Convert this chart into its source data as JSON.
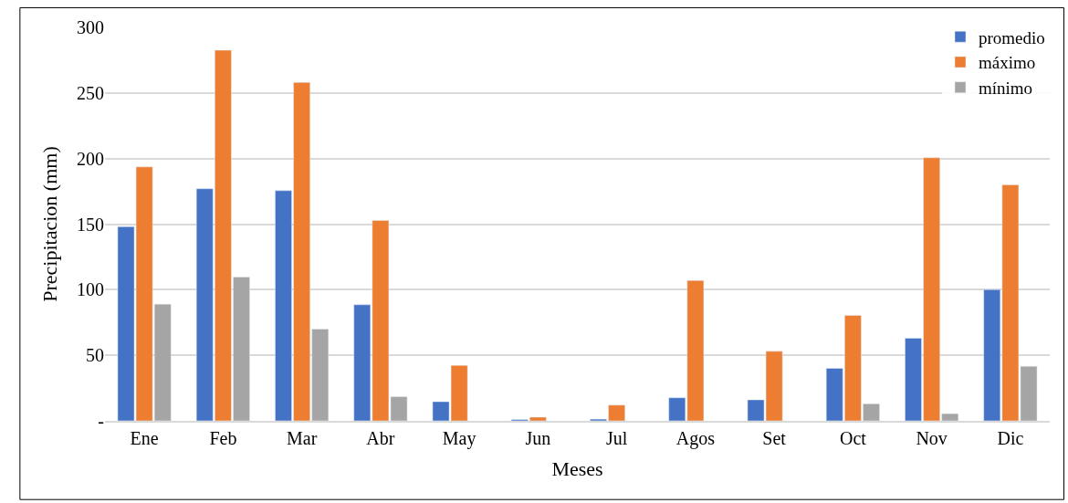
{
  "chart_data": {
    "type": "bar",
    "xlabel": "Meses",
    "ylabel": "Precipitacion (mm)",
    "categories": [
      "Ene",
      "Feb",
      "Mar",
      "Abr",
      "May",
      "Jun",
      "Jul",
      "Agos",
      "Set",
      "Oct",
      "Nov",
      "Dic"
    ],
    "series": [
      {
        "name": "promedio",
        "color": "#4472c4",
        "values": [
          148,
          177,
          175.5,
          88.5,
          14.6,
          1,
          1.3,
          17.6,
          16,
          40,
          63,
          100
        ]
      },
      {
        "name": "máximo",
        "color": "#ed7d31",
        "values": [
          193.6,
          282.6,
          258,
          152.8,
          42.3,
          2.8,
          12,
          107,
          53,
          80.4,
          200.6,
          180
        ]
      },
      {
        "name": "mínimo",
        "color": "#a5a5a5",
        "values": [
          89,
          109.7,
          70,
          18.4,
          null,
          null,
          null,
          null,
          null,
          13,
          5.5,
          41.6
        ]
      }
    ],
    "ylim": [
      0,
      300
    ],
    "yticks": [
      {
        "value": 0,
        "label": "-"
      },
      50,
      100,
      150,
      200,
      250,
      300
    ],
    "grid": "y",
    "legend": "top right"
  }
}
